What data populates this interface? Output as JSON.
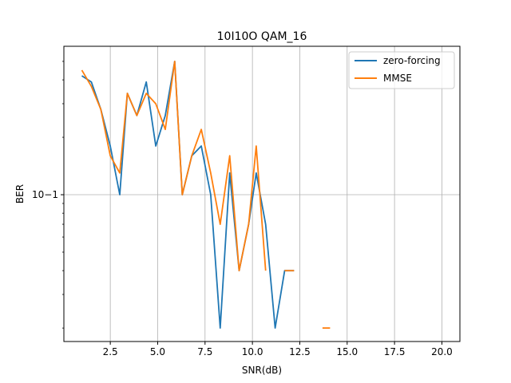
{
  "chart_data": {
    "type": "line",
    "title": "10I10O QAM_16",
    "xlabel": "SNR(dB)",
    "ylabel": "BER",
    "yscale": "log",
    "xlim": [
      0.05,
      20.95
    ],
    "ylim": [
      0.017,
      0.6
    ],
    "x_ticks": [
      2.5,
      5.0,
      7.5,
      10.0,
      12.5,
      15.0,
      17.5,
      20.0
    ],
    "x_tick_labels": [
      "2.5",
      "5.0",
      "7.5",
      "10.0",
      "12.5",
      "15.0",
      "17.5",
      "20.0"
    ],
    "y_ticks": [
      0.1
    ],
    "y_tick_labels": [
      "10−1"
    ],
    "grid": true,
    "legend_position": "top-right",
    "colors": {
      "zero_forcing": "#1f77b4",
      "mmse": "#ff7f0e"
    },
    "series": [
      {
        "name": "zero-forcing",
        "x": [
          1.0,
          1.5,
          2.0,
          2.5,
          3.0,
          3.4,
          3.9,
          4.4,
          4.9,
          5.4,
          5.9,
          6.3,
          6.8,
          7.3,
          7.8,
          8.3,
          8.8,
          9.3,
          9.8,
          10.2,
          10.7,
          11.2,
          11.7,
          12.2,
          12.7,
          13.2,
          13.7,
          14.1,
          14.6,
          15.1,
          15.6,
          16.1,
          16.6,
          17.1,
          17.6,
          18.0,
          18.5,
          19.0,
          19.5,
          20.0
        ],
        "y": [
          0.42,
          0.39,
          0.28,
          0.18,
          0.1,
          0.34,
          0.26,
          0.39,
          0.18,
          0.26,
          0.5,
          0.1,
          0.16,
          0.18,
          0.1,
          0.02,
          0.13,
          0.04,
          0.07,
          0.13,
          0.07,
          0.02,
          0.04,
          0.04,
          null,
          null,
          null,
          null,
          null,
          null,
          null,
          null,
          null,
          null,
          null,
          null,
          null,
          null,
          null,
          null
        ]
      },
      {
        "name": "MMSE",
        "x": [
          1.0,
          1.5,
          2.0,
          2.5,
          3.0,
          3.4,
          3.9,
          4.4,
          4.9,
          5.4,
          5.9,
          6.3,
          6.8,
          7.3,
          7.8,
          8.3,
          8.8,
          9.3,
          9.8,
          10.2,
          10.7,
          11.2,
          11.7,
          12.2,
          12.7,
          13.2,
          13.7,
          14.1,
          14.6,
          15.1,
          15.6,
          16.1,
          16.6,
          17.1,
          17.6,
          18.0,
          18.5,
          19.0,
          19.5,
          20.0
        ],
        "y": [
          0.45,
          0.37,
          0.28,
          0.16,
          0.13,
          0.34,
          0.26,
          0.34,
          0.3,
          0.22,
          0.5,
          0.1,
          0.16,
          0.22,
          0.13,
          0.07,
          0.16,
          0.04,
          0.07,
          0.18,
          0.04,
          null,
          0.04,
          0.04,
          null,
          null,
          0.02,
          0.02,
          null,
          null,
          null,
          null,
          null,
          null,
          null,
          null,
          null,
          null,
          null,
          null
        ]
      }
    ]
  }
}
